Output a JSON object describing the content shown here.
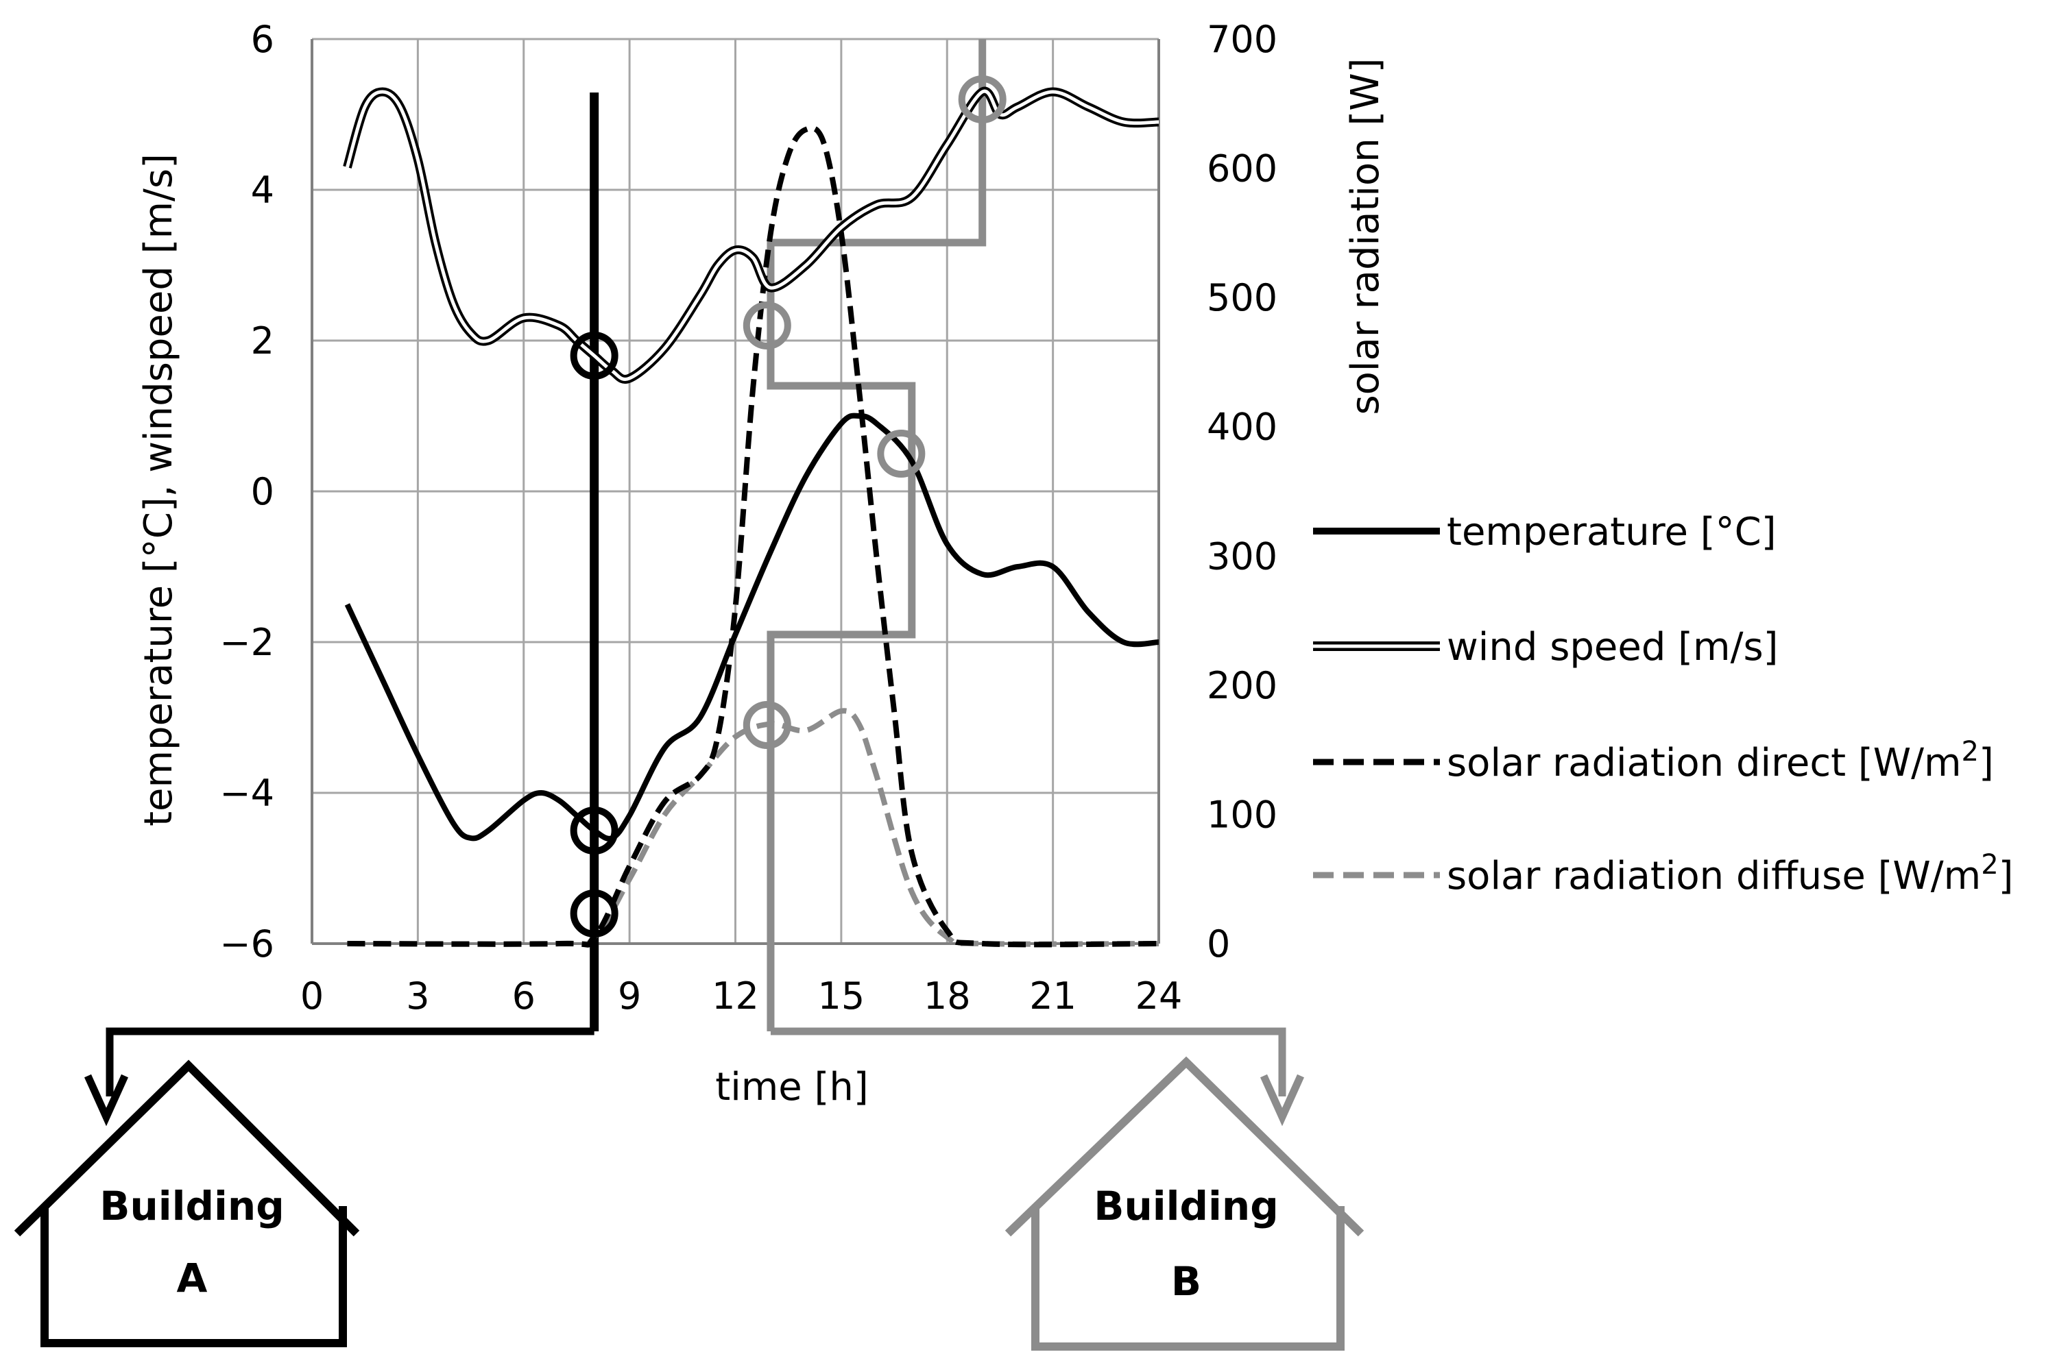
{
  "chart_data": {
    "type": "line",
    "x": {
      "label": "time [h]",
      "range": [
        0,
        24
      ],
      "ticks": [
        0,
        3,
        6,
        9,
        12,
        15,
        18,
        21,
        24
      ],
      "tick_labels": [
        "0",
        "3",
        "6",
        "9",
        "12",
        "15",
        "18",
        "21",
        "24"
      ]
    },
    "y_left": {
      "label": "temperature [°C], windspeed [m/s]",
      "range": [
        -6,
        6
      ],
      "ticks": [
        -6,
        -4,
        -2,
        0,
        2,
        4,
        6
      ],
      "tick_labels": [
        "−6",
        "−4",
        "−2",
        "0",
        "2",
        "4",
        "6"
      ]
    },
    "y_right": {
      "label": "solar radiation [W]",
      "range": [
        0,
        700
      ],
      "ticks": [
        0,
        100,
        200,
        300,
        400,
        500,
        600,
        700
      ],
      "tick_labels": [
        "0",
        "100",
        "200",
        "300",
        "400",
        "500",
        "600",
        "700"
      ]
    },
    "grid": true,
    "series": [
      {
        "name": "temperature [°C]",
        "axis": "left",
        "color": "#000000",
        "style": "solid",
        "x": [
          1,
          2,
          3,
          4,
          4.5,
          5,
          6,
          6.5,
          7,
          7.5,
          8,
          8.5,
          9,
          10,
          11,
          12,
          13,
          14,
          15,
          15.5,
          16,
          17,
          18,
          19,
          20,
          21,
          22,
          23,
          24
        ],
        "y": [
          -1.5,
          -2.5,
          -3.5,
          -4.4,
          -4.6,
          -4.5,
          -4.1,
          -4.0,
          -4.1,
          -4.3,
          -4.5,
          -4.6,
          -4.3,
          -3.4,
          -3.0,
          -1.9,
          -0.8,
          0.2,
          0.9,
          1.0,
          0.9,
          0.4,
          -0.7,
          -1.1,
          -1.0,
          -1.0,
          -1.6,
          -2.0,
          -2.0
        ]
      },
      {
        "name": "wind speed [m/s]",
        "axis": "left",
        "color": "#000000",
        "style": "double",
        "x": [
          1,
          1.5,
          2,
          2.5,
          3,
          3.5,
          4,
          4.5,
          5,
          6,
          7,
          7.5,
          8,
          8.5,
          9,
          10,
          11,
          11.5,
          12,
          12.5,
          13,
          14,
          15,
          16,
          17,
          18,
          19,
          19.5,
          20,
          21,
          22,
          23,
          24
        ],
        "y": [
          4.3,
          5.1,
          5.3,
          5.1,
          4.4,
          3.3,
          2.5,
          2.1,
          2.0,
          2.3,
          2.2,
          2.0,
          1.8,
          1.6,
          1.5,
          1.9,
          2.6,
          3.0,
          3.2,
          3.1,
          2.7,
          3.0,
          3.5,
          3.8,
          3.9,
          4.6,
          5.3,
          5.0,
          5.1,
          5.3,
          5.1,
          4.9,
          4.9
        ]
      },
      {
        "name": "solar radiation  direct [W/m",
        "axis": "right",
        "color": "#000000",
        "style": "dashed",
        "x": [
          1,
          7,
          8,
          9,
          10,
          11,
          11.5,
          12,
          12.5,
          13,
          13.5,
          14,
          14.5,
          15,
          15.5,
          16,
          16.5,
          17,
          18,
          19,
          24
        ],
        "y": [
          0,
          0,
          5,
          60,
          110,
          130,
          160,
          260,
          430,
          550,
          610,
          630,
          620,
          550,
          430,
          300,
          180,
          70,
          10,
          0,
          0
        ]
      },
      {
        "name": "solar radiation diffuse [W/m",
        "axis": "right",
        "color": "#8c8c8c",
        "style": "dashed",
        "x": [
          1,
          7,
          8,
          9,
          10,
          11,
          12,
          13,
          14,
          15,
          15.5,
          16,
          17,
          18,
          19,
          24
        ],
        "y": [
          0,
          0,
          5,
          50,
          100,
          130,
          160,
          170,
          165,
          180,
          170,
          130,
          40,
          5,
          0,
          0
        ]
      }
    ],
    "markers": {
      "building_a": [
        {
          "x": 8,
          "y": 1.8
        },
        {
          "x": 8,
          "y": -4.5
        },
        {
          "x": 8,
          "y": -5.6
        }
      ],
      "building_b": [
        {
          "x": 12.9,
          "y": 2.2
        },
        {
          "x": 12.9,
          "y": -3.1
        },
        {
          "x": 16.7,
          "y": 0.5
        },
        {
          "x": 19,
          "y": 5.2
        }
      ]
    },
    "building_a_time": 8,
    "building_b_steps": [
      {
        "x_start": 13,
        "x_end": 17,
        "y": -1.9
      },
      {
        "x_start": 13,
        "x_end": 17,
        "y": 1.4
      },
      {
        "x_start": 13,
        "x_end": 19,
        "y": 3.3
      },
      {
        "x_start": 19,
        "x_end": 19,
        "y": 6.0
      }
    ]
  },
  "legend_sup": "2",
  "legend_close": "]",
  "buildings": {
    "a": {
      "line1": "Building",
      "line2": "A",
      "color": "#000000"
    },
    "b": {
      "line1": "Building",
      "line2": "B",
      "color": "#8c8c8c"
    }
  },
  "colors": {
    "grid": "#a6a6a6",
    "axis": "#808080",
    "black": "#000000",
    "gray": "#8c8c8c"
  }
}
